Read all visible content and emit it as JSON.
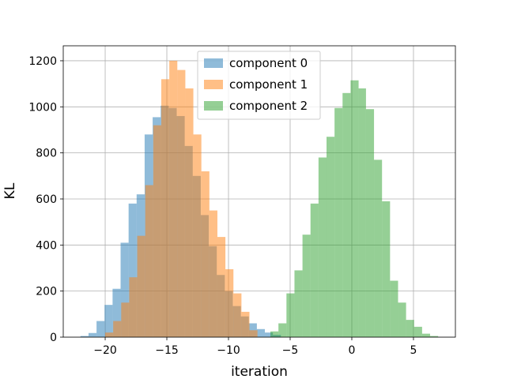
{
  "chart_data": {
    "type": "bar",
    "xlabel": "iteration",
    "ylabel": "KL",
    "xlim": [
      -23.4,
      8.4
    ],
    "ylim": [
      0,
      1265
    ],
    "xticks": [
      -20,
      -15,
      -10,
      -5,
      0,
      5
    ],
    "yticks": [
      0,
      200,
      400,
      600,
      800,
      1000,
      1200
    ],
    "xtick_labels": [
      "−20",
      "−15",
      "−10",
      "−5",
      "0",
      "5"
    ],
    "ytick_labels": [
      "0",
      "200",
      "400",
      "600",
      "800",
      "1000",
      "1200"
    ],
    "grid": true,
    "legend_position": "top-center",
    "bin_alpha": 0.5,
    "series": [
      {
        "name": "component 0",
        "color": "#1f77b4",
        "bin_edges": [
          -22.0,
          -21.35,
          -20.7,
          -20.05,
          -19.4,
          -18.75,
          -18.1,
          -17.45,
          -16.8,
          -16.15,
          -15.5,
          -14.85,
          -14.2,
          -13.55,
          -12.9,
          -12.25,
          -11.6,
          -10.95,
          -10.3,
          -9.65,
          -9.0,
          -8.35,
          -7.7,
          -7.05,
          -6.4,
          -5.75
        ],
        "counts": [
          5,
          18,
          70,
          140,
          210,
          410,
          580,
          620,
          880,
          955,
          1005,
          995,
          960,
          830,
          700,
          530,
          395,
          270,
          200,
          135,
          90,
          60,
          35,
          20,
          10
        ]
      },
      {
        "name": "component 1",
        "color": "#ff7f0e",
        "bin_edges": [
          -20.0,
          -19.35,
          -18.7,
          -18.05,
          -17.4,
          -16.75,
          -16.1,
          -15.45,
          -14.8,
          -14.15,
          -13.5,
          -12.85,
          -12.2,
          -11.55,
          -10.9,
          -10.25,
          -9.6,
          -8.95,
          -8.3,
          -7.65
        ],
        "counts": [
          20,
          70,
          150,
          260,
          440,
          660,
          920,
          1120,
          1200,
          1160,
          1080,
          880,
          720,
          550,
          435,
          295,
          190,
          110,
          30
        ]
      },
      {
        "name": "component 2",
        "color": "#2ca02c",
        "bin_edges": [
          -6.6,
          -5.95,
          -5.3,
          -4.65,
          -4.0,
          -3.35,
          -2.7,
          -2.05,
          -1.4,
          -0.75,
          -0.1,
          0.55,
          1.15,
          1.8,
          2.45,
          3.1,
          3.75,
          4.4,
          5.05,
          5.7,
          6.35,
          7.0
        ],
        "counts": [
          25,
          60,
          190,
          290,
          445,
          580,
          780,
          870,
          995,
          1060,
          1115,
          1080,
          990,
          770,
          590,
          245,
          150,
          75,
          45,
          15,
          5
        ]
      }
    ]
  }
}
